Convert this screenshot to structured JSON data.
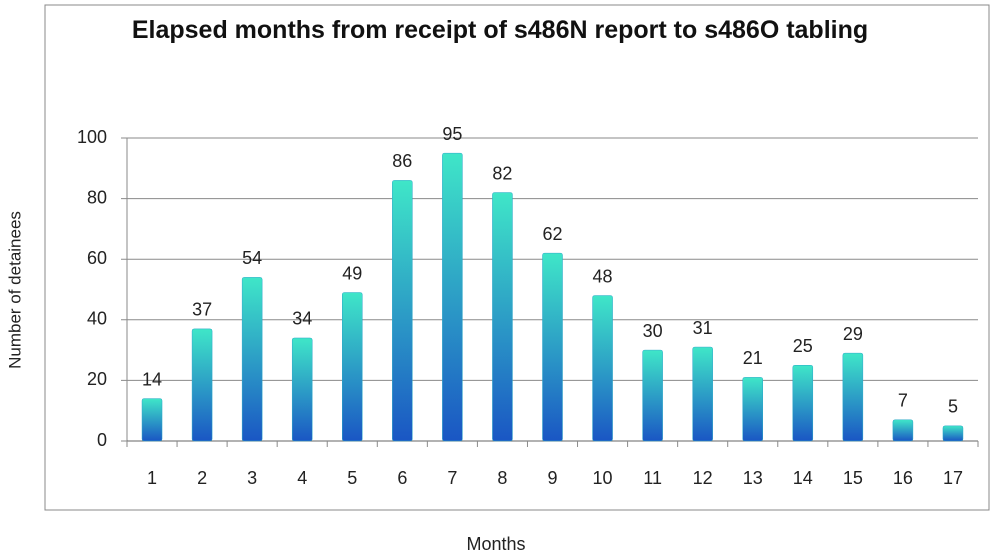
{
  "chart_data": {
    "type": "bar",
    "title": "Elapsed months from receipt of s486N report to s486O tabling",
    "x_label": "Months",
    "y_label": "Number of detainees",
    "categories": [
      "1",
      "2",
      "3",
      "4",
      "5",
      "6",
      "7",
      "8",
      "9",
      "10",
      "11",
      "12",
      "13",
      "14",
      "15",
      "16",
      "17"
    ],
    "values": [
      14,
      37,
      54,
      34,
      49,
      86,
      95,
      82,
      62,
      48,
      30,
      31,
      21,
      25,
      29,
      7,
      5
    ],
    "color_top": "#3fe6c8",
    "color_bottom": "#1a56c4",
    "ylim": [
      0,
      100
    ],
    "yticks": [
      0,
      20,
      40,
      60,
      80,
      100
    ],
    "grid": true
  }
}
